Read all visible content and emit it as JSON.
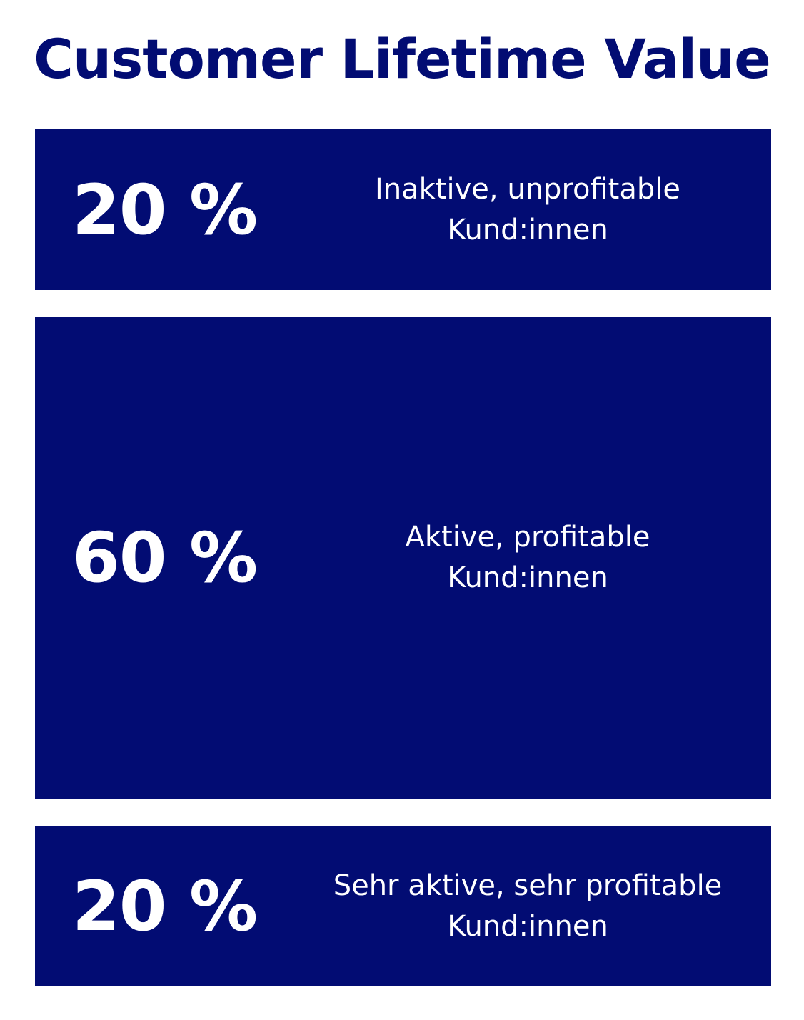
{
  "title": "Customer Lifetime Value",
  "colors": {
    "navy": "#020c73",
    "white": "#ffffff"
  },
  "segments": [
    {
      "percent": "20 %",
      "share": 20,
      "label_line1": "Inaktive, unprofitable",
      "label_line2": "Kund:innen"
    },
    {
      "percent": "60 %",
      "share": 60,
      "label_line1": "Aktive, profitable",
      "label_line2": "Kund:innen"
    },
    {
      "percent": "20 %",
      "share": 20,
      "label_line1": "Sehr aktive, sehr profitable",
      "label_line2": "Kund:innen"
    }
  ]
}
